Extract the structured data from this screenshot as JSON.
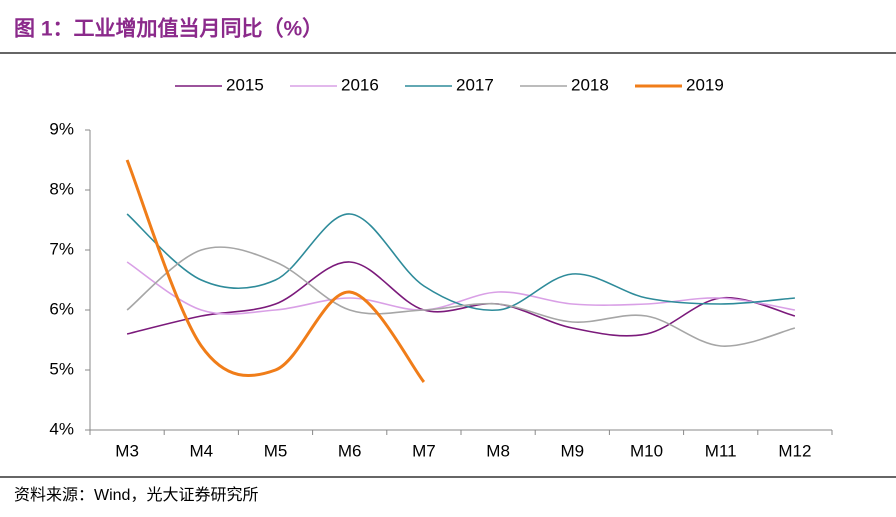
{
  "chart_data": {
    "type": "line",
    "title": "图 1：工业增加值当月同比（%）",
    "source": "资料来源：Wind，光大证券研究所",
    "categories": [
      "M3",
      "M4",
      "M5",
      "M6",
      "M7",
      "M8",
      "M9",
      "M10",
      "M11",
      "M12"
    ],
    "series": [
      {
        "name": "2015",
        "color": "#7b1a7b",
        "values": [
          5.6,
          5.9,
          6.1,
          6.8,
          6.0,
          6.1,
          5.7,
          5.6,
          6.2,
          5.9
        ]
      },
      {
        "name": "2016",
        "color": "#d9a0e6",
        "values": [
          6.8,
          6.0,
          6.0,
          6.2,
          6.0,
          6.3,
          6.1,
          6.1,
          6.2,
          6.0
        ]
      },
      {
        "name": "2017",
        "color": "#2e8b9a",
        "values": [
          7.6,
          6.5,
          6.5,
          7.6,
          6.4,
          6.0,
          6.6,
          6.2,
          6.1,
          6.2
        ]
      },
      {
        "name": "2018",
        "color": "#a6a6a6",
        "values": [
          6.0,
          7.0,
          6.8,
          6.0,
          6.0,
          6.1,
          5.8,
          5.9,
          5.4,
          5.7
        ]
      },
      {
        "name": "2019",
        "color": "#f07d19",
        "values": [
          8.5,
          5.4,
          5.0,
          6.3,
          4.8,
          null,
          null,
          null,
          null,
          null
        ]
      }
    ],
    "ylim": [
      4,
      9
    ],
    "yticks": [
      {
        "value": 4,
        "label": "4%"
      },
      {
        "value": 5,
        "label": "5%"
      },
      {
        "value": 6,
        "label": "6%"
      },
      {
        "value": 7,
        "label": "7%"
      },
      {
        "value": 8,
        "label": "8%"
      },
      {
        "value": 9,
        "label": "9%"
      }
    ],
    "smooth": true,
    "legend": "top"
  }
}
